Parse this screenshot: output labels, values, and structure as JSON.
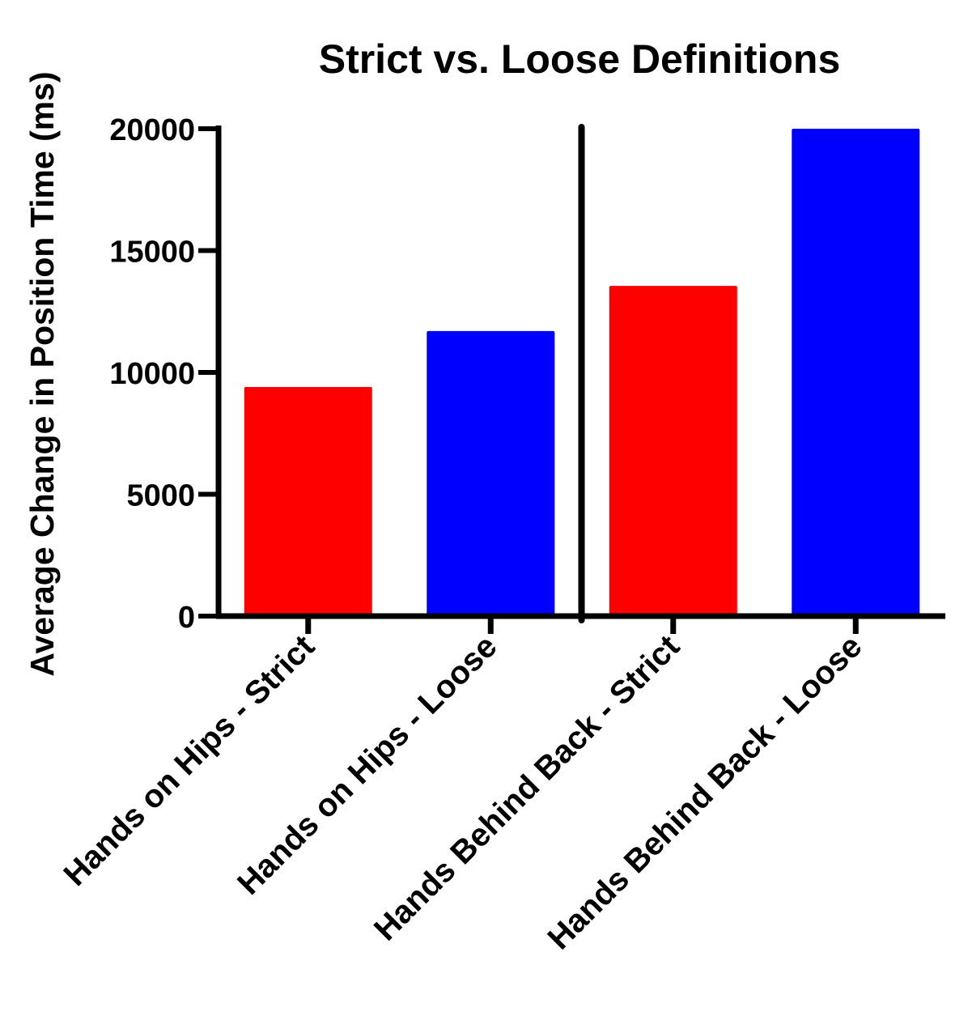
{
  "chart_data": {
    "type": "bar",
    "title": "Strict vs. Loose Definitions",
    "xlabel": "",
    "ylabel": "Average Change in Position Time (ms)",
    "categories": [
      "Hands on Hips - Strict",
      "Hands on Hips - Loose",
      "Hands Behind Back - Strict",
      "Hands Behind Back - Loose"
    ],
    "values": [
      9400,
      11700,
      13550,
      20000
    ],
    "bar_colors": [
      "#ff0000",
      "#0000ff",
      "#ff0000",
      "#0000ff"
    ],
    "ylim": [
      0,
      20000
    ],
    "yticks": [
      0,
      5000,
      10000,
      15000,
      20000
    ],
    "ytick_labels": [
      "0",
      "5000",
      "10000",
      "15000",
      "20000"
    ],
    "separator_after_category": 2,
    "grid": false,
    "legend": "none"
  }
}
